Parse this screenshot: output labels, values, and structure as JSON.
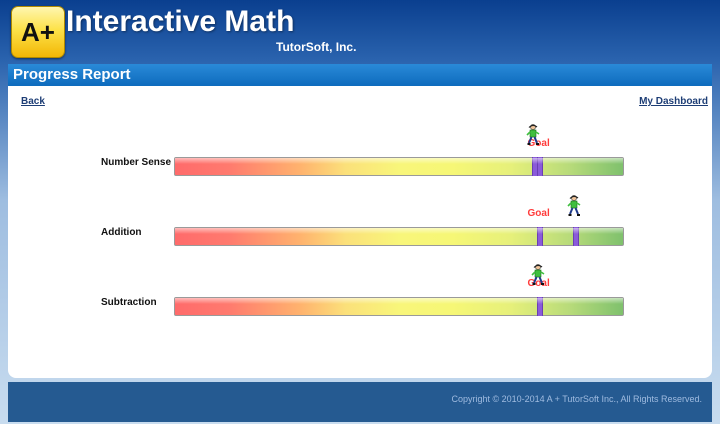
{
  "header": {
    "logo_text": "A+",
    "title": "Interactive Math",
    "company": "TutorSoft, Inc."
  },
  "panel": {
    "title": "Progress Report",
    "back_label": "Back",
    "dashboard_label": "My Dashboard"
  },
  "skills": [
    {
      "label": "Number Sense",
      "goal_text": "Goal",
      "goal_fraction": 0.81,
      "progress_fraction": 0.8
    },
    {
      "label": "Addition",
      "goal_text": "Goal",
      "goal_fraction": 0.81,
      "progress_fraction": 0.89
    },
    {
      "label": "Subtraction",
      "goal_text": "Goal",
      "goal_fraction": 0.81,
      "progress_fraction": 0.81
    }
  ],
  "footer": {
    "copyright": "Copyright © 2010-2014 A + TutorSoft Inc., All Rights Reserved."
  },
  "colors": {
    "header_blue": "#0a3f8f",
    "panel_header": "#1a7acb",
    "marker": "#8a5bd9",
    "goal": "#ff3b3b",
    "footer": "#255a91"
  }
}
